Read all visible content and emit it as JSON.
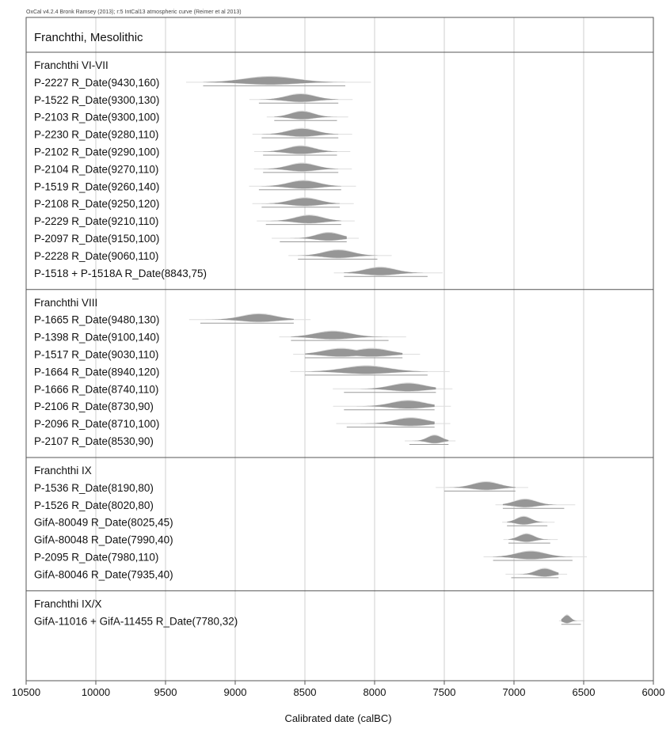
{
  "header": "OxCal v4.2.4 Bronk Ramsey (2013); r:5 IntCal13 atmospheric curve (Reimer et al 2013)",
  "chart_data": {
    "type": "density",
    "title": "Franchthi, Mesolithic",
    "xlabel": "Calibrated date (calBC)",
    "xlim": [
      10500,
      6000
    ],
    "x_reversed": true,
    "x_ticks": [
      10500,
      10000,
      9500,
      9000,
      8500,
      8000,
      7500,
      7000,
      6500,
      6000
    ],
    "grid": true,
    "groups": [
      {
        "name": "Franchthi VI-VII",
        "dates": [
          {
            "label": "P-2227 R_Date(9430,160)",
            "range": [
              9230,
              8210
            ],
            "peaks": [
              8750
            ]
          },
          {
            "label": "P-1522 R_Date(9300,130)",
            "range": [
              8830,
              8260
            ],
            "peaks": [
              8530
            ]
          },
          {
            "label": "P-2103 R_Date(9300,100)",
            "range": [
              8720,
              8270
            ],
            "peaks": [
              8520
            ]
          },
          {
            "label": "P-2230 R_Date(9280,110)",
            "range": [
              8810,
              8260
            ],
            "peaks": [
              8520
            ]
          },
          {
            "label": "P-2102 R_Date(9290,100)",
            "range": [
              8800,
              8270
            ],
            "peaks": [
              8530
            ]
          },
          {
            "label": "P-2104 R_Date(9270,110)",
            "range": [
              8800,
              8260
            ],
            "peaks": [
              8520
            ]
          },
          {
            "label": "P-1519 R_Date(9260,140)",
            "range": [
              8830,
              8240
            ],
            "peaks": [
              8510
            ]
          },
          {
            "label": "P-2108 R_Date(9250,120)",
            "range": [
              8810,
              8250
            ],
            "peaks": [
              8500
            ]
          },
          {
            "label": "P-2229 R_Date(9210,110)",
            "range": [
              8780,
              8240
            ],
            "peaks": [
              8470
            ]
          },
          {
            "label": "P-2097 R_Date(9150,100)",
            "range": [
              8680,
              8200
            ],
            "peaks": [
              8330
            ]
          },
          {
            "label": "P-2228 R_Date(9060,110)",
            "range": [
              8550,
              7980
            ],
            "peaks": [
              8260
            ]
          },
          {
            "label": "P-1518 + P-1518A R_Date(8843,75)",
            "range": [
              8220,
              7620
            ],
            "peaks": [
              7960
            ]
          }
        ]
      },
      {
        "name": "Franchthi VIII",
        "dates": [
          {
            "label": "P-1665 R_Date(9480,130)",
            "range": [
              9250,
              8580
            ],
            "peaks": [
              8830
            ]
          },
          {
            "label": "P-1398 R_Date(9100,140)",
            "range": [
              8600,
              7900
            ],
            "peaks": [
              8300
            ]
          },
          {
            "label": "P-1517 R_Date(9030,110)",
            "range": [
              8500,
              7800
            ],
            "peaks": [
              8240,
              8020
            ]
          },
          {
            "label": "P-1664 R_Date(8940,120)",
            "range": [
              8500,
              7620
            ],
            "peaks": [
              8060
            ]
          },
          {
            "label": "P-1666 R_Date(8740,110)",
            "range": [
              8220,
              7560
            ],
            "peaks": [
              7760
            ]
          },
          {
            "label": "P-2106 R_Date(8730,90)",
            "range": [
              8220,
              7570
            ],
            "peaks": [
              7760
            ]
          },
          {
            "label": "P-2096 R_Date(8710,100)",
            "range": [
              8200,
              7570
            ],
            "peaks": [
              7740
            ]
          },
          {
            "label": "P-2107 R_Date(8530,90)",
            "range": [
              7750,
              7470
            ],
            "peaks": [
              7570
            ]
          }
        ]
      },
      {
        "name": "Franchthi IX",
        "dates": [
          {
            "label": "P-1536 R_Date(8190,80)",
            "range": [
              7500,
              6990
            ],
            "peaks": [
              7200
            ]
          },
          {
            "label": "P-1526 R_Date(8020,80)",
            "range": [
              7080,
              6640
            ],
            "peaks": [
              6920
            ]
          },
          {
            "label": "GifA-80049 R_Date(8025,45)",
            "range": [
              7050,
              6760
            ],
            "peaks": [
              6930
            ]
          },
          {
            "label": "GifA-80048 R_Date(7990,40)",
            "range": [
              7040,
              6740
            ],
            "peaks": [
              6910
            ]
          },
          {
            "label": "P-2095 R_Date(7980,110)",
            "range": [
              7150,
              6580
            ],
            "peaks": [
              6880
            ]
          },
          {
            "label": "GifA-80046 R_Date(7935,40)",
            "range": [
              7020,
              6680
            ],
            "peaks": [
              6780
            ]
          }
        ]
      },
      {
        "name": "Franchthi IX/X",
        "dates": [
          {
            "label": "GifA-11016 + GifA-11455 R_Date(7780,32)",
            "range": [
              6660,
              6520
            ],
            "peaks": [
              6620
            ]
          }
        ]
      }
    ]
  }
}
